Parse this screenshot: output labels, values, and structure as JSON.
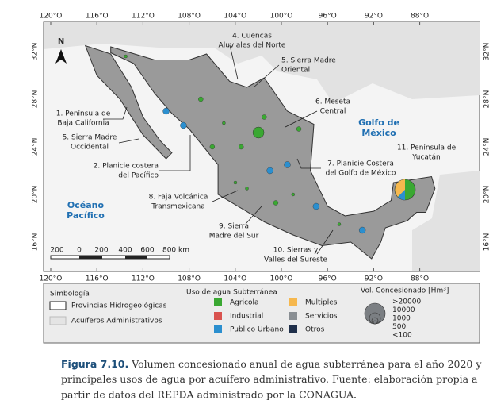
{
  "map": {
    "lon_labels": [
      "120°O",
      "116°O",
      "112°O",
      "108°O",
      "104°O",
      "100°O",
      "96°O",
      "92°O",
      "88°O"
    ],
    "lat_labels": [
      "32°N",
      "28°N",
      "24°N",
      "20°N",
      "16°N"
    ],
    "regions": [
      [
        "1. Península de",
        "Baja California"
      ],
      [
        "4. Cuencas",
        "Aluviales del Norte"
      ],
      [
        "5. Sierra Madre",
        "Oriental"
      ],
      [
        "6. Meseta",
        "Central"
      ],
      [
        "5. Sierra Madre",
        "Occidental"
      ],
      [
        "11. Península de",
        "Yucatán"
      ],
      [
        "2. Planicie costera",
        "del Pacífico"
      ],
      [
        "7. Planicie  Costera",
        "del Golfo de México"
      ],
      [
        "8. Faja Volcánica",
        "Transmexicana"
      ],
      [
        "9. Sierra",
        "Madre del Sur"
      ],
      [
        "10. Sierras y",
        "Valles del Sureste"
      ]
    ],
    "seas": [
      [
        "Golfo de",
        "México"
      ],
      [
        "Océano",
        "Pacífico"
      ]
    ],
    "north": "N",
    "scale": [
      "200",
      "0",
      "200",
      "400",
      "600",
      "800 km"
    ]
  },
  "legend": {
    "title": "Simbología",
    "symbols": [
      "Provincias Hidrogeológicas",
      "Acuíferos Administrativos"
    ],
    "uses_title": "Uso de agua Subterránea",
    "uses": [
      {
        "name": "Agricola",
        "color": "#3aa832"
      },
      {
        "name": "Industrial",
        "color": "#d9534f"
      },
      {
        "name": "Publico Urbano",
        "color": "#2b8fcf"
      },
      {
        "name": "Multiples",
        "color": "#f6b84e"
      },
      {
        "name": "Servicios",
        "color": "#8a8f94"
      },
      {
        "name": "Otros",
        "color": "#1f2f4a"
      }
    ],
    "volume_title": "Vol. Concesionado [Hm³]",
    "volume_labels": [
      ">20000",
      "10000",
      "1000",
      "500",
      "<100"
    ]
  },
  "caption": {
    "label": "Figura 7.10.",
    "lines": [
      "Volumen concesionado anual de agua subterránea para el año 2020 y",
      "principales usos de agua por acuífero administrativo. Fuente: elaboración propia a",
      "partir de datos del REPDA administrado por la CONAGUA."
    ]
  }
}
